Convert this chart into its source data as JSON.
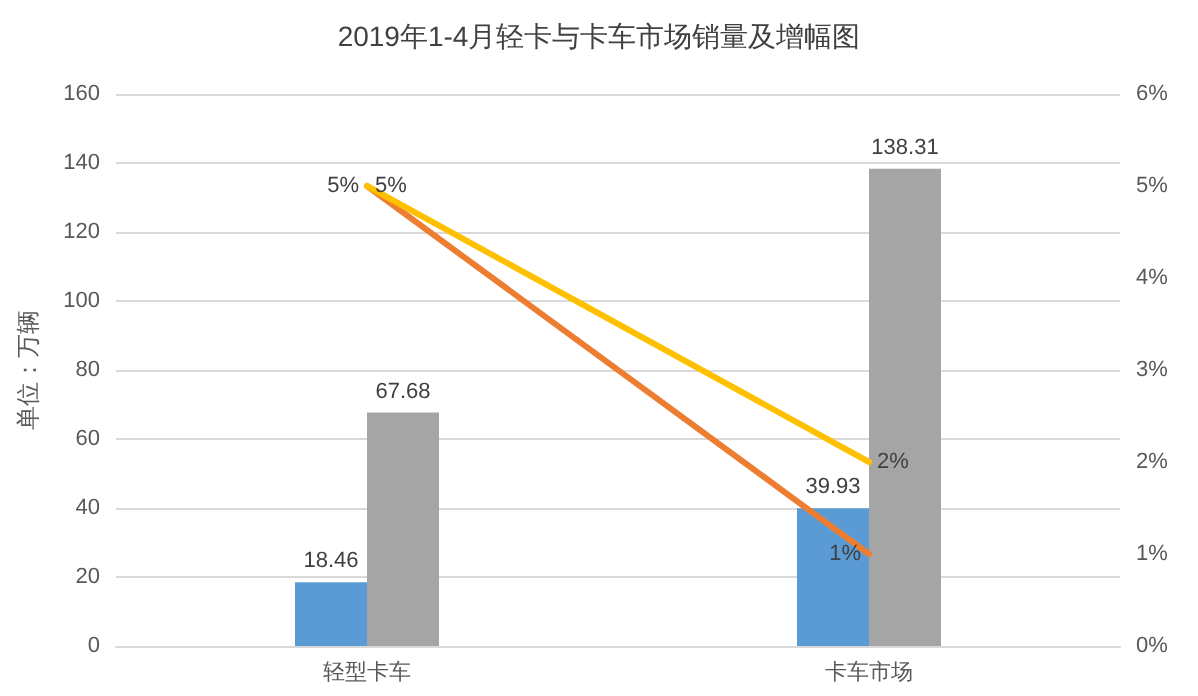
{
  "chart_data": {
    "type": "bar",
    "title": "2019年1-4月轻卡与卡车市场销量及增幅图",
    "ylabel": "单位：万辆",
    "categories": [
      "轻型卡车",
      "卡车市场"
    ],
    "series": [
      {
        "color": "#5b9bd5",
        "values": [
          18.46,
          39.93
        ],
        "value_labels": [
          "18.46",
          "39.93"
        ]
      },
      {
        "color": "#a5a5a5",
        "values": [
          67.68,
          138.31
        ],
        "value_labels": [
          "67.68",
          "138.31"
        ]
      },
      {
        "type": "line",
        "axis": "y2",
        "color": "#ed7d31",
        "values": [
          5,
          1
        ],
        "value_labels": [
          "5%",
          "1%"
        ]
      },
      {
        "type": "line",
        "axis": "y2",
        "color": "#ffc000",
        "values": [
          5,
          2
        ],
        "value_labels": [
          "5%",
          "2%"
        ]
      }
    ],
    "ylim": [
      0,
      160
    ],
    "yticks": [
      0,
      20,
      40,
      60,
      80,
      100,
      120,
      140,
      160
    ],
    "y2lim": [
      0,
      6
    ],
    "y2ticks": [
      {
        "value": 0,
        "label": "0%"
      },
      {
        "value": 1,
        "label": "1%"
      },
      {
        "value": 2,
        "label": "2%"
      },
      {
        "value": 3,
        "label": "3%"
      },
      {
        "value": 4,
        "label": "4%"
      },
      {
        "value": 5,
        "label": "5%"
      },
      {
        "value": 6,
        "label": "6%"
      }
    ],
    "grid": "y",
    "marker": "none",
    "line_style": "solid"
  }
}
